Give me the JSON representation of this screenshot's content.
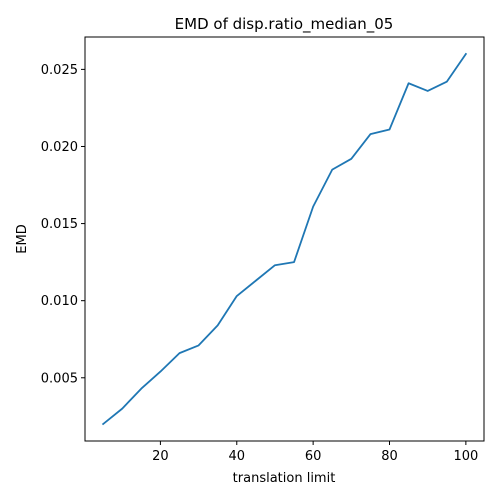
{
  "chart_data": {
    "type": "line",
    "title": "EMD of disp.ratio_median_05",
    "xlabel": "translation limit",
    "ylabel": "EMD",
    "xlim": [
      0.25,
      104.75
    ],
    "ylim": [
      0.0009,
      0.0271
    ],
    "xticks": [
      20,
      40,
      60,
      80,
      100
    ],
    "xtick_labels": [
      "20",
      "40",
      "60",
      "80",
      "100"
    ],
    "yticks": [
      0.005,
      0.01,
      0.015,
      0.02,
      0.025
    ],
    "ytick_labels": [
      "0.005",
      "0.010",
      "0.015",
      "0.020",
      "0.025"
    ],
    "grid": false,
    "series": [
      {
        "color": "#1f77b4",
        "x": [
          5,
          10,
          15,
          20,
          25,
          30,
          35,
          40,
          45,
          50,
          55,
          60,
          65,
          70,
          75,
          80,
          85,
          90,
          95,
          100
        ],
        "y": [
          0.002,
          0.003,
          0.0043,
          0.0054,
          0.0066,
          0.0071,
          0.0084,
          0.0103,
          0.0113,
          0.0123,
          0.0125,
          0.0161,
          0.0185,
          0.0192,
          0.0208,
          0.0211,
          0.0241,
          0.0236,
          0.0242,
          0.026
        ]
      }
    ]
  }
}
